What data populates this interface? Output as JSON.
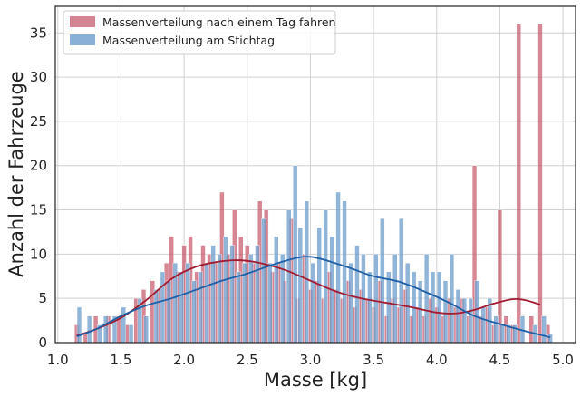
{
  "chart_data": {
    "type": "bar",
    "subtype": "overlapping histogram with KDE curves",
    "title": "",
    "xlabel": "Masse [kg]",
    "ylabel": "Anzahl der Fahrzeuge",
    "xlim": [
      0.98,
      5.1
    ],
    "ylim": [
      0,
      38
    ],
    "xticks": [
      "1.0",
      "1.5",
      "2.0",
      "2.5",
      "3.0",
      "3.5",
      "4.0",
      "4.5",
      "5.0"
    ],
    "yticks": [
      "0",
      "5",
      "10",
      "15",
      "20",
      "25",
      "30",
      "35"
    ],
    "grid": true,
    "legend_position": "top-left",
    "bin_width": 0.035,
    "series": [
      {
        "name": "Massenverteilung nach einem Tag fahren",
        "color": "#c44e62",
        "kde_color": "#a01c32",
        "bins": [
          [
            1.15,
            2
          ],
          [
            1.22,
            1
          ],
          [
            1.3,
            3
          ],
          [
            1.4,
            3
          ],
          [
            1.48,
            3
          ],
          [
            1.55,
            2
          ],
          [
            1.62,
            5
          ],
          [
            1.68,
            6
          ],
          [
            1.75,
            7
          ],
          [
            1.8,
            6
          ],
          [
            1.86,
            9
          ],
          [
            1.9,
            12
          ],
          [
            1.95,
            8
          ],
          [
            2.0,
            11
          ],
          [
            2.05,
            12
          ],
          [
            2.1,
            8
          ],
          [
            2.15,
            11
          ],
          [
            2.2,
            10
          ],
          [
            2.25,
            9
          ],
          [
            2.3,
            17
          ],
          [
            2.35,
            10
          ],
          [
            2.4,
            15
          ],
          [
            2.45,
            12
          ],
          [
            2.5,
            11
          ],
          [
            2.55,
            9
          ],
          [
            2.6,
            16
          ],
          [
            2.65,
            15
          ],
          [
            2.7,
            8
          ],
          [
            2.75,
            9
          ],
          [
            2.8,
            7
          ],
          [
            2.85,
            14
          ],
          [
            2.9,
            5
          ],
          [
            2.95,
            10
          ],
          [
            3.0,
            6
          ],
          [
            3.05,
            7
          ],
          [
            3.1,
            5
          ],
          [
            3.15,
            8
          ],
          [
            3.2,
            6
          ],
          [
            3.25,
            5
          ],
          [
            3.3,
            7
          ],
          [
            3.35,
            4
          ],
          [
            3.4,
            6
          ],
          [
            3.45,
            5
          ],
          [
            3.5,
            4
          ],
          [
            3.55,
            7
          ],
          [
            3.6,
            3
          ],
          [
            3.65,
            5
          ],
          [
            3.7,
            4
          ],
          [
            3.75,
            6
          ],
          [
            3.8,
            3
          ],
          [
            3.85,
            4
          ],
          [
            3.9,
            3
          ],
          [
            3.95,
            5
          ],
          [
            4.0,
            4
          ],
          [
            4.05,
            3
          ],
          [
            4.1,
            5
          ],
          [
            4.15,
            4
          ],
          [
            4.2,
            5
          ],
          [
            4.25,
            3
          ],
          [
            4.3,
            20
          ],
          [
            4.35,
            3
          ],
          [
            4.4,
            4
          ],
          [
            4.45,
            2
          ],
          [
            4.5,
            15
          ],
          [
            4.55,
            3
          ],
          [
            4.6,
            2
          ],
          [
            4.65,
            36
          ],
          [
            4.75,
            3
          ],
          [
            4.82,
            36
          ],
          [
            4.88,
            2
          ]
        ],
        "kde": [
          [
            1.15,
            0.8
          ],
          [
            1.3,
            1.5
          ],
          [
            1.5,
            2.8
          ],
          [
            1.7,
            4.8
          ],
          [
            1.9,
            7.2
          ],
          [
            2.1,
            8.6
          ],
          [
            2.3,
            9.2
          ],
          [
            2.45,
            9.3
          ],
          [
            2.6,
            9.0
          ],
          [
            2.8,
            8.2
          ],
          [
            3.0,
            7.0
          ],
          [
            3.2,
            5.8
          ],
          [
            3.4,
            5.0
          ],
          [
            3.6,
            4.5
          ],
          [
            3.8,
            4.0
          ],
          [
            4.0,
            3.4
          ],
          [
            4.15,
            3.3
          ],
          [
            4.3,
            3.7
          ],
          [
            4.45,
            4.4
          ],
          [
            4.6,
            4.9
          ],
          [
            4.7,
            4.8
          ],
          [
            4.82,
            4.3
          ]
        ]
      },
      {
        "name": "Massenverteilung am Stichtag",
        "color": "#6c9ccc",
        "kde_color": "#1f5fa6",
        "bins": [
          [
            1.17,
            4
          ],
          [
            1.25,
            3
          ],
          [
            1.33,
            2
          ],
          [
            1.38,
            3
          ],
          [
            1.45,
            3
          ],
          [
            1.52,
            4
          ],
          [
            1.58,
            2
          ],
          [
            1.65,
            5
          ],
          [
            1.7,
            3
          ],
          [
            1.78,
            6
          ],
          [
            1.83,
            8
          ],
          [
            1.88,
            7
          ],
          [
            1.93,
            9
          ],
          [
            1.98,
            8
          ],
          [
            2.03,
            9
          ],
          [
            2.08,
            7
          ],
          [
            2.13,
            8
          ],
          [
            2.18,
            9
          ],
          [
            2.23,
            11
          ],
          [
            2.28,
            10
          ],
          [
            2.33,
            12
          ],
          [
            2.38,
            11
          ],
          [
            2.43,
            8
          ],
          [
            2.48,
            9
          ],
          [
            2.53,
            10
          ],
          [
            2.58,
            11
          ],
          [
            2.63,
            14
          ],
          [
            2.68,
            9
          ],
          [
            2.73,
            12
          ],
          [
            2.78,
            10
          ],
          [
            2.83,
            15
          ],
          [
            2.88,
            20
          ],
          [
            2.92,
            13
          ],
          [
            2.97,
            16
          ],
          [
            3.02,
            9
          ],
          [
            3.07,
            13
          ],
          [
            3.12,
            15
          ],
          [
            3.17,
            12
          ],
          [
            3.22,
            17
          ],
          [
            3.27,
            16
          ],
          [
            3.32,
            9
          ],
          [
            3.37,
            11
          ],
          [
            3.42,
            10
          ],
          [
            3.47,
            8
          ],
          [
            3.52,
            10
          ],
          [
            3.57,
            14
          ],
          [
            3.62,
            8
          ],
          [
            3.67,
            10
          ],
          [
            3.72,
            14
          ],
          [
            3.77,
            9
          ],
          [
            3.82,
            8
          ],
          [
            3.87,
            7
          ],
          [
            3.92,
            10
          ],
          [
            3.97,
            8
          ],
          [
            4.02,
            8
          ],
          [
            4.07,
            7
          ],
          [
            4.12,
            10
          ],
          [
            4.17,
            6
          ],
          [
            4.22,
            5
          ],
          [
            4.27,
            5
          ],
          [
            4.32,
            7
          ],
          [
            4.37,
            4
          ],
          [
            4.42,
            5
          ],
          [
            4.47,
            3
          ],
          [
            4.52,
            2
          ],
          [
            4.57,
            2
          ],
          [
            4.62,
            2
          ],
          [
            4.68,
            3
          ],
          [
            4.78,
            2
          ],
          [
            4.85,
            3
          ],
          [
            4.9,
            1
          ]
        ],
        "kde": [
          [
            1.15,
            0.7
          ],
          [
            1.3,
            1.5
          ],
          [
            1.5,
            3.0
          ],
          [
            1.7,
            4.2
          ],
          [
            1.9,
            5.0
          ],
          [
            2.1,
            6.0
          ],
          [
            2.3,
            7.0
          ],
          [
            2.5,
            7.8
          ],
          [
            2.7,
            8.8
          ],
          [
            2.9,
            9.6
          ],
          [
            3.0,
            9.7
          ],
          [
            3.1,
            9.4
          ],
          [
            3.3,
            8.5
          ],
          [
            3.5,
            7.5
          ],
          [
            3.7,
            6.9
          ],
          [
            3.9,
            5.8
          ],
          [
            4.1,
            4.5
          ],
          [
            4.3,
            3.0
          ],
          [
            4.5,
            2.1
          ],
          [
            4.7,
            1.3
          ],
          [
            4.9,
            0.6
          ]
        ]
      }
    ]
  }
}
